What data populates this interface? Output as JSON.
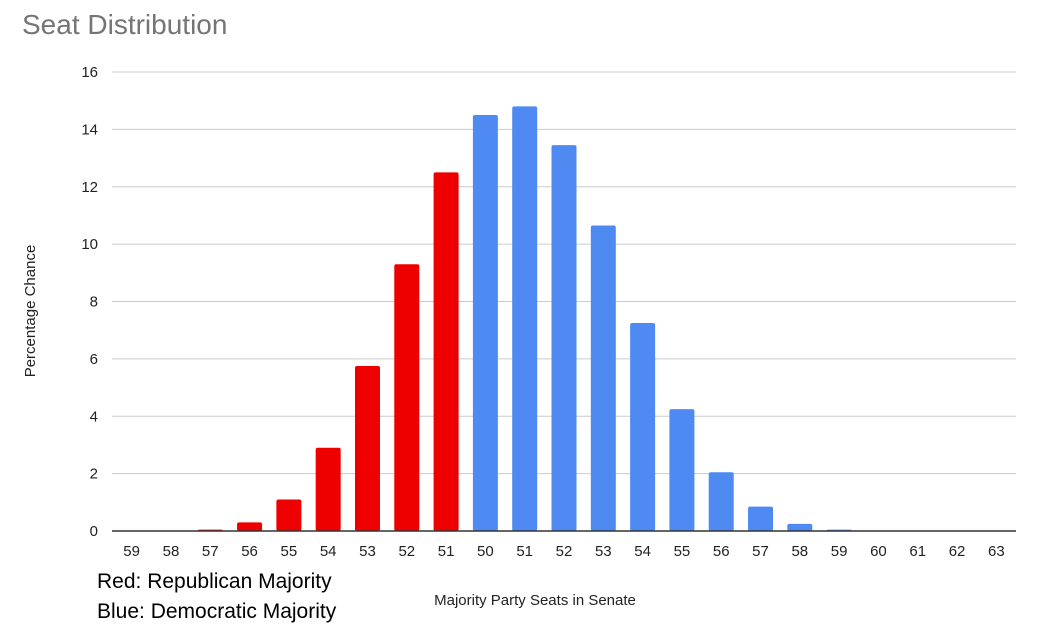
{
  "chart_data": {
    "type": "bar",
    "title": "Seat Distribution",
    "xlabel": "Majority Party Seats in Senate",
    "ylabel": "Percentage Chance",
    "ylim": [
      0,
      16
    ],
    "yticks": [
      "0",
      "2",
      "4",
      "6",
      "8",
      "10",
      "12",
      "14",
      "16"
    ],
    "grid": true,
    "legend": "none",
    "categories": [
      "59",
      "58",
      "57",
      "56",
      "55",
      "54",
      "53",
      "52",
      "51",
      "50",
      "51",
      "52",
      "53",
      "54",
      "55",
      "56",
      "57",
      "58",
      "59",
      "60",
      "61",
      "62",
      "63"
    ],
    "values": [
      0,
      0,
      0.05,
      0.3,
      1.1,
      2.9,
      5.75,
      9.3,
      12.5,
      14.5,
      14.8,
      13.45,
      10.65,
      7.25,
      4.25,
      2.05,
      0.85,
      0.25,
      0.05,
      0,
      0,
      0,
      0
    ],
    "bar_colors": [
      "#ee0000",
      "#ee0000",
      "#ee0000",
      "#ee0000",
      "#ee0000",
      "#ee0000",
      "#ee0000",
      "#ee0000",
      "#ee0000",
      "#4f8af2",
      "#4f8af2",
      "#4f8af2",
      "#4f8af2",
      "#4f8af2",
      "#4f8af2",
      "#4f8af2",
      "#4f8af2",
      "#4f8af2",
      "#4f8af2",
      "#4f8af2",
      "#4f8af2",
      "#4f8af2",
      "#4f8af2"
    ]
  },
  "notes": {
    "red": "Red: Republican Majority",
    "blue": "Blue: Democratic Majority"
  },
  "colors": {
    "republican": "#ee0000",
    "democratic": "#4f8af2",
    "grid": "#cccccc",
    "baseline": "#333333",
    "title": "#757575"
  }
}
